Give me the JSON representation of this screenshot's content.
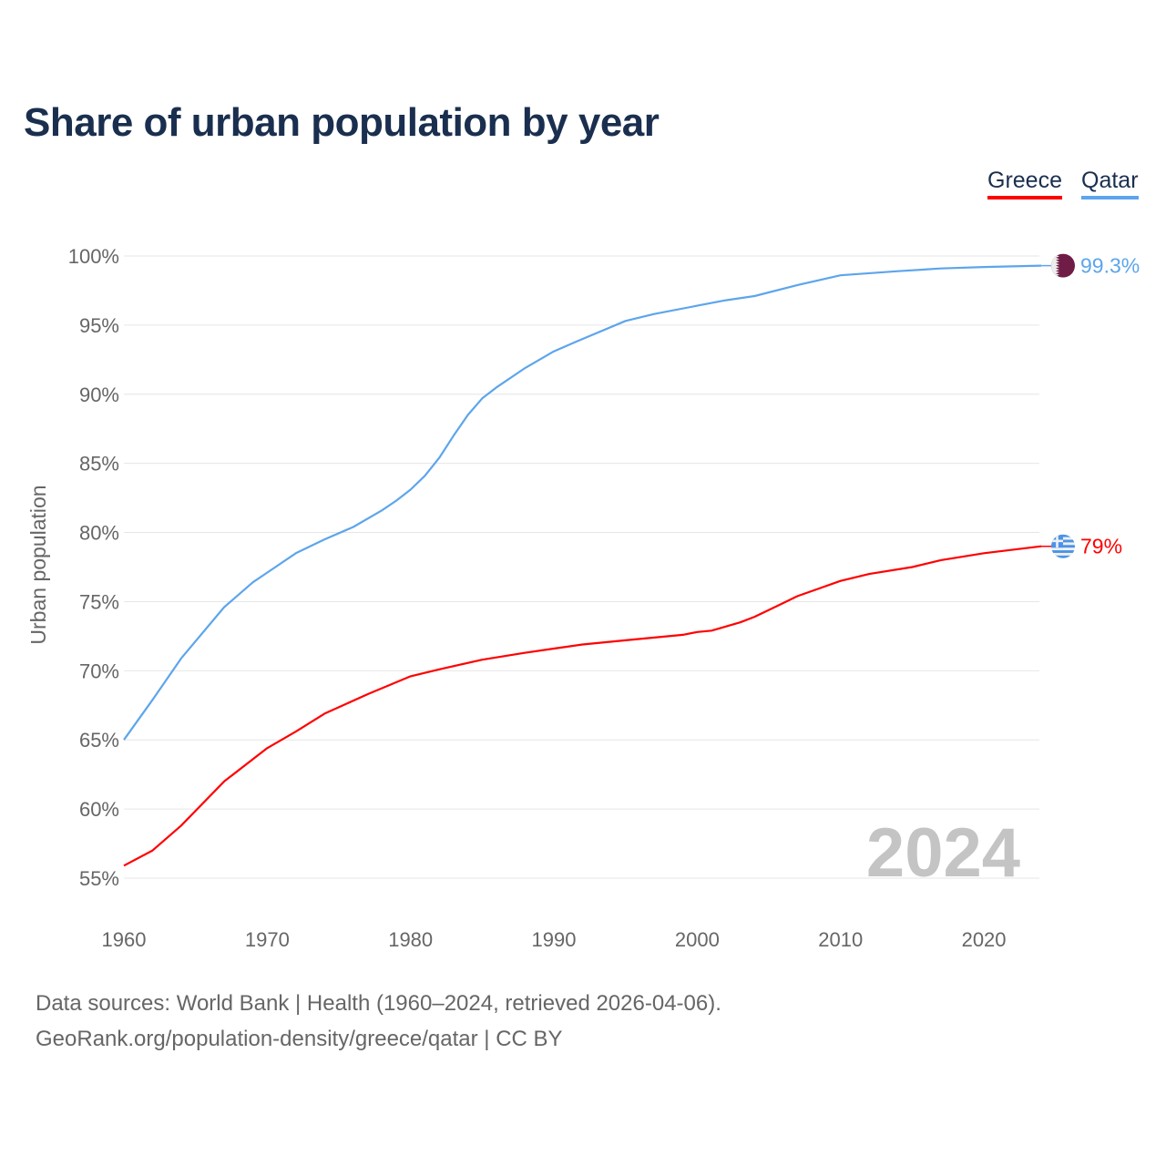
{
  "title": "Share of urban population by year",
  "legend": [
    {
      "name": "Greece",
      "color": "#ff0000"
    },
    {
      "name": "Qatar",
      "color": "#5da5ec"
    }
  ],
  "chart_data": {
    "type": "line",
    "title": "Share of urban population by year",
    "xlabel": "",
    "ylabel": "Urban population",
    "xlim": [
      1960,
      2024
    ],
    "ylim": [
      55,
      100
    ],
    "x_ticks": [
      1960,
      1970,
      1980,
      1990,
      2000,
      2010,
      2020
    ],
    "y_ticks": [
      55,
      60,
      65,
      70,
      75,
      80,
      85,
      90,
      95,
      100
    ],
    "y_tick_labels": [
      "55%",
      "60%",
      "65%",
      "70%",
      "75%",
      "80%",
      "85%",
      "90%",
      "95%",
      "100%"
    ],
    "grid": "horizontal",
    "legend_position": "top-right",
    "year_watermark": "2024",
    "series": [
      {
        "name": "Greece",
        "color": "#ff0000",
        "end_label": "79%",
        "flag": "greece-flag",
        "points": [
          [
            1960,
            55.9
          ],
          [
            1962,
            57.0
          ],
          [
            1964,
            58.8
          ],
          [
            1967,
            62.0
          ],
          [
            1970,
            64.4
          ],
          [
            1972,
            65.6
          ],
          [
            1974,
            66.9
          ],
          [
            1977,
            68.3
          ],
          [
            1980,
            69.6
          ],
          [
            1982,
            70.1
          ],
          [
            1985,
            70.8
          ],
          [
            1988,
            71.3
          ],
          [
            1990,
            71.6
          ],
          [
            1992,
            71.9
          ],
          [
            1995,
            72.2
          ],
          [
            1999,
            72.6
          ],
          [
            2000,
            72.8
          ],
          [
            2001,
            72.9
          ],
          [
            2003,
            73.5
          ],
          [
            2004,
            73.9
          ],
          [
            2005,
            74.4
          ],
          [
            2006,
            74.9
          ],
          [
            2007,
            75.4
          ],
          [
            2010,
            76.5
          ],
          [
            2012,
            77.0
          ],
          [
            2015,
            77.5
          ],
          [
            2017,
            78.0
          ],
          [
            2020,
            78.5
          ],
          [
            2024,
            79.0
          ]
        ]
      },
      {
        "name": "Qatar",
        "color": "#5da5ec",
        "end_label": "99.3%",
        "flag": "qatar-flag",
        "points": [
          [
            1960,
            65.0
          ],
          [
            1962,
            67.9
          ],
          [
            1964,
            70.9
          ],
          [
            1967,
            74.6
          ],
          [
            1969,
            76.4
          ],
          [
            1970,
            77.1
          ],
          [
            1972,
            78.5
          ],
          [
            1974,
            79.5
          ],
          [
            1976,
            80.4
          ],
          [
            1978,
            81.6
          ],
          [
            1979,
            82.3
          ],
          [
            1980,
            83.1
          ],
          [
            1981,
            84.1
          ],
          [
            1982,
            85.4
          ],
          [
            1983,
            87.0
          ],
          [
            1984,
            88.5
          ],
          [
            1985,
            89.7
          ],
          [
            1986,
            90.5
          ],
          [
            1988,
            91.9
          ],
          [
            1990,
            93.1
          ],
          [
            1992,
            94.0
          ],
          [
            1995,
            95.3
          ],
          [
            1997,
            95.8
          ],
          [
            2000,
            96.4
          ],
          [
            2002,
            96.8
          ],
          [
            2004,
            97.1
          ],
          [
            2007,
            97.9
          ],
          [
            2010,
            98.6
          ],
          [
            2014,
            98.9
          ],
          [
            2017,
            99.1
          ],
          [
            2020,
            99.2
          ],
          [
            2024,
            99.3
          ]
        ]
      }
    ]
  },
  "footer": {
    "line1": "Data sources: World Bank | Health (1960–2024, retrieved 2026-04-06).",
    "line2": "GeoRank.org/population-density/greece/qatar | CC BY"
  }
}
